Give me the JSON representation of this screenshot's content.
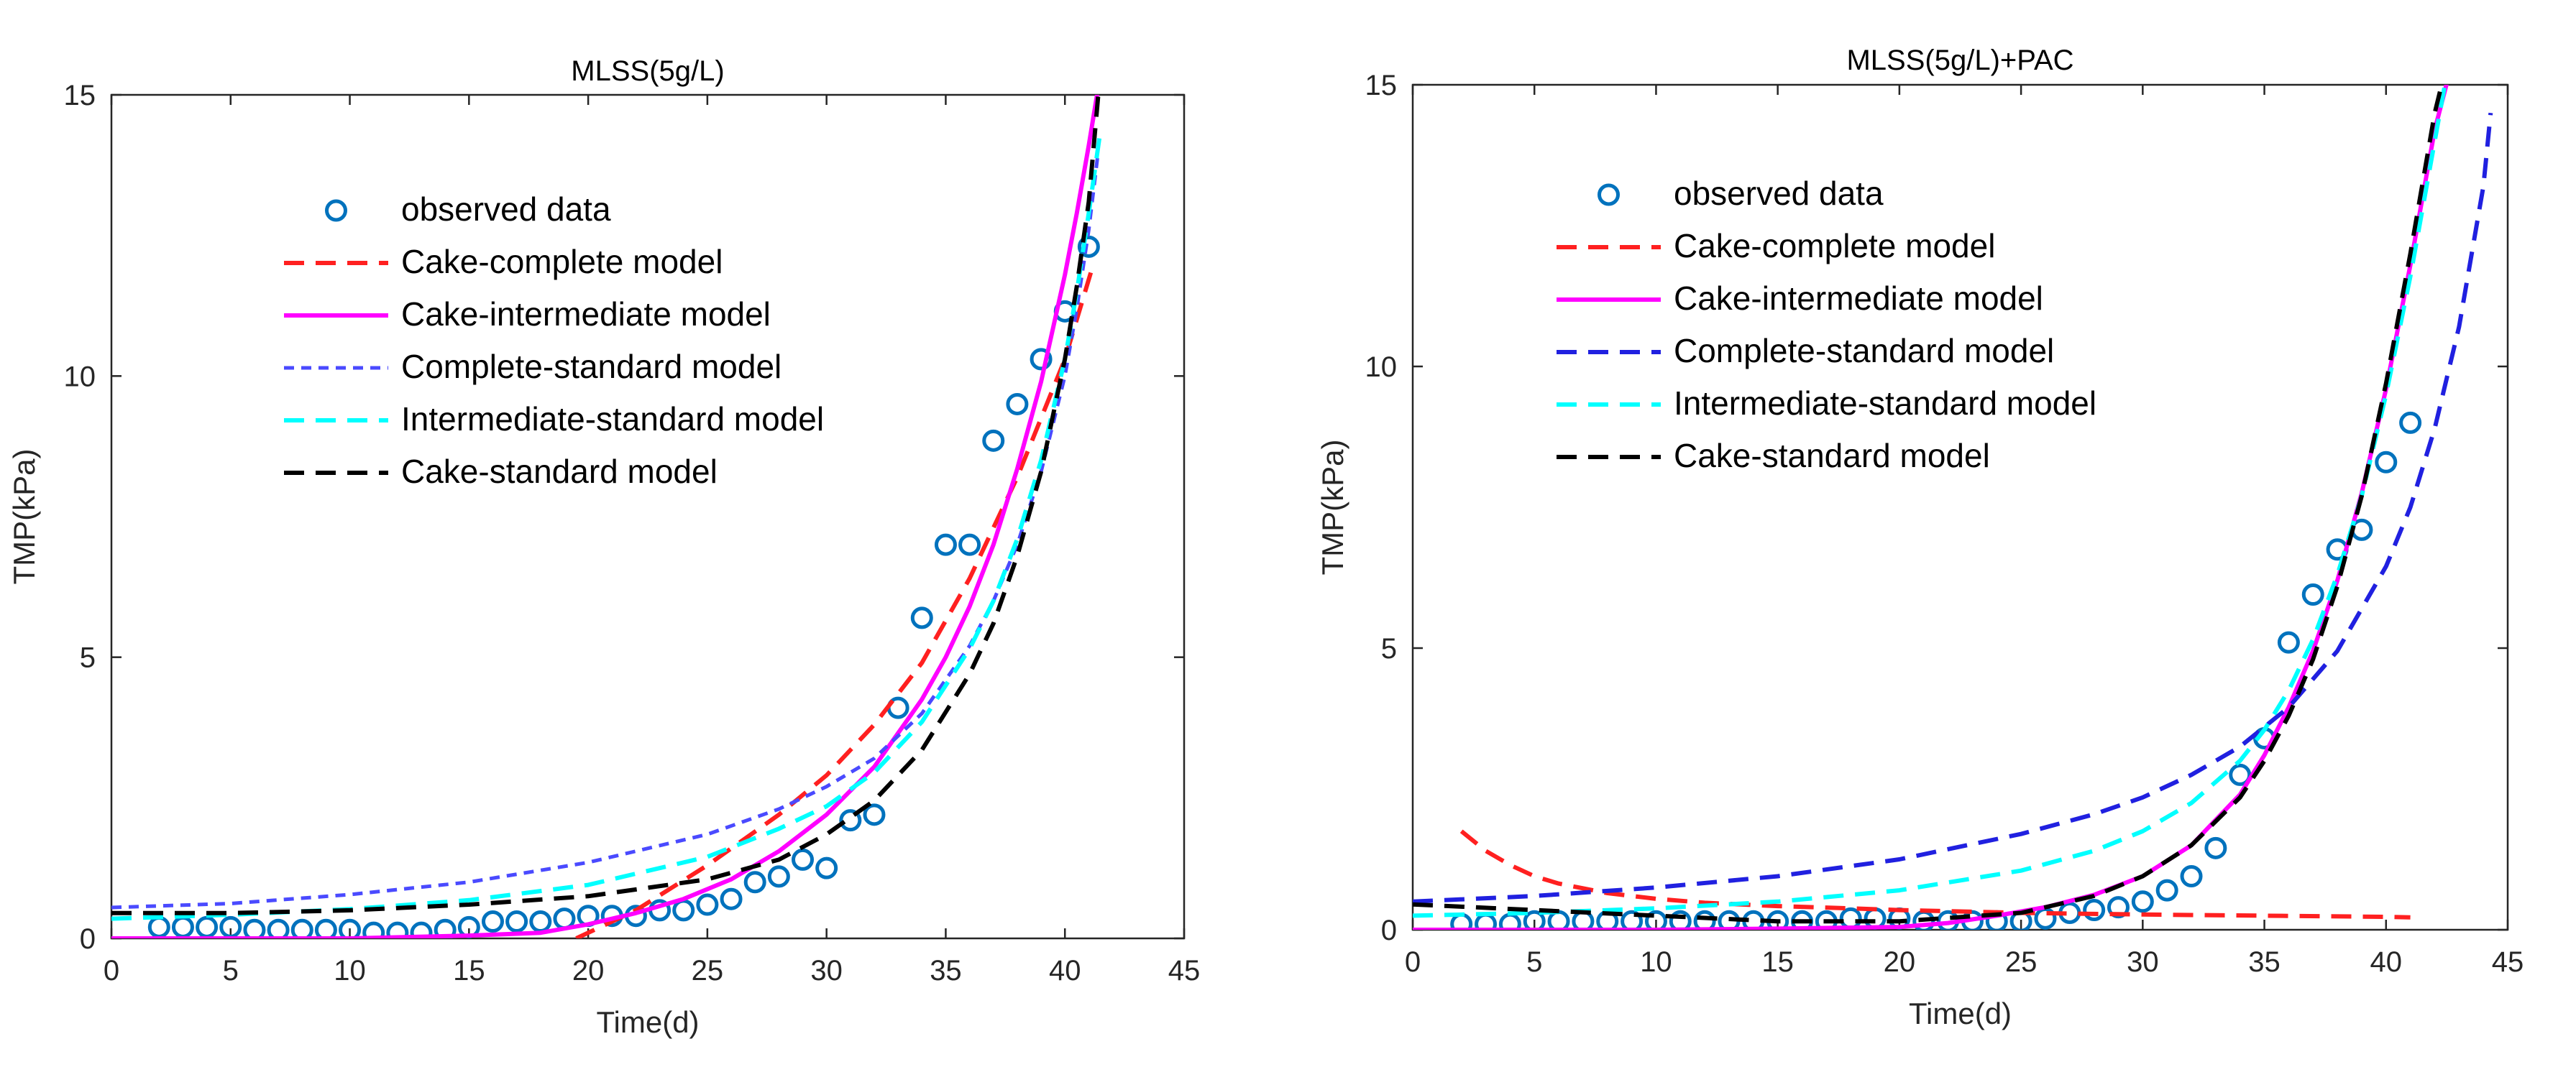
{
  "chart_data": [
    {
      "type": "line",
      "title": "MLSS(5g/L)",
      "xlabel": "Time(d)",
      "ylabel": "TMP(kPa)",
      "xlim": [
        0,
        45
      ],
      "ylim": [
        0,
        15
      ],
      "xticks": [
        0,
        5,
        10,
        15,
        20,
        25,
        30,
        35,
        40,
        45
      ],
      "yticks": [
        0,
        5,
        10,
        15
      ],
      "grid": false,
      "legend_position": "upper-left",
      "observed": {
        "name": "observed data",
        "color": "#0072BD",
        "x": [
          2,
          3,
          4,
          5,
          6,
          7,
          8,
          9,
          10,
          11,
          12,
          13,
          14,
          15,
          16,
          17,
          18,
          19,
          20,
          21,
          22,
          23,
          24,
          25,
          26,
          27,
          28,
          29,
          30,
          31,
          32,
          33,
          34,
          35,
          36,
          37,
          38,
          39,
          40,
          41
        ],
        "y": [
          0.2,
          0.2,
          0.2,
          0.2,
          0.15,
          0.15,
          0.15,
          0.15,
          0.15,
          0.1,
          0.1,
          0.1,
          0.15,
          0.2,
          0.3,
          0.3,
          0.3,
          0.35,
          0.4,
          0.4,
          0.4,
          0.5,
          0.5,
          0.6,
          0.7,
          1.0,
          1.1,
          1.4,
          1.25,
          2.1,
          2.2,
          4.1,
          5.7,
          7.0,
          7.0,
          8.85,
          9.5,
          10.3,
          11.15,
          12.3
        ]
      },
      "series": [
        {
          "name": "Cake-complete model",
          "color": "#FF2020",
          "style": "dash",
          "x": [
            19.5,
            22,
            25,
            28,
            30,
            32,
            34,
            36,
            38,
            40,
            41.2
          ],
          "y": [
            0,
            0.5,
            1.3,
            2.2,
            2.9,
            3.8,
            4.9,
            6.4,
            8.2,
            10.3,
            12.0
          ]
        },
        {
          "name": "Cake-intermediate model",
          "color": "#FF00FF",
          "style": "solid",
          "x": [
            0,
            10,
            15,
            18,
            20,
            22,
            24,
            26,
            28,
            30,
            32,
            34,
            35,
            36,
            37,
            38,
            39,
            40,
            40.5,
            41,
            41.5
          ],
          "y": [
            0,
            0,
            0.05,
            0.1,
            0.25,
            0.45,
            0.7,
            1.05,
            1.55,
            2.2,
            3.05,
            4.25,
            5.0,
            5.9,
            7.0,
            8.35,
            9.9,
            11.8,
            12.9,
            14.1,
            15.4
          ]
        },
        {
          "name": "Complete-standard model",
          "color": "#4A4AFF",
          "style": "dot",
          "x": [
            0,
            5,
            10,
            15,
            20,
            25,
            28,
            30,
            32,
            34,
            36,
            37,
            38,
            39,
            40,
            40.5,
            41,
            41.4
          ],
          "y": [
            0.55,
            0.62,
            0.78,
            1.0,
            1.35,
            1.85,
            2.3,
            2.7,
            3.2,
            4.0,
            5.2,
            6.0,
            7.0,
            8.3,
            10.0,
            11.2,
            12.6,
            14.0
          ]
        },
        {
          "name": "Intermediate-standard model",
          "color": "#00FFFF",
          "style": "dash",
          "x": [
            0,
            5,
            10,
            15,
            20,
            25,
            28,
            30,
            32,
            34,
            36,
            37,
            38,
            39,
            40,
            40.5,
            41,
            41.5
          ],
          "y": [
            0.35,
            0.42,
            0.52,
            0.68,
            0.95,
            1.45,
            1.95,
            2.35,
            2.95,
            3.85,
            5.15,
            6.0,
            7.1,
            8.5,
            10.3,
            11.5,
            12.9,
            14.4
          ]
        },
        {
          "name": "Cake-standard model",
          "color": "#000000",
          "style": "dash",
          "x": [
            0,
            5,
            10,
            15,
            20,
            25,
            28,
            30,
            32,
            34,
            36,
            37,
            38,
            39,
            40,
            40.5,
            41,
            41.4
          ],
          "y": [
            0.45,
            0.45,
            0.5,
            0.6,
            0.75,
            1.05,
            1.4,
            1.85,
            2.45,
            3.35,
            4.7,
            5.6,
            6.8,
            8.3,
            10.3,
            11.6,
            13.1,
            15.0
          ]
        }
      ]
    },
    {
      "type": "line",
      "title": "MLSS(5g/L)+PAC",
      "xlabel": "Time(d)",
      "ylabel": "TMP(kPa)",
      "xlim": [
        0,
        45
      ],
      "ylim": [
        0,
        15
      ],
      "xticks": [
        0,
        5,
        10,
        15,
        20,
        25,
        30,
        35,
        40,
        45
      ],
      "yticks": [
        0,
        5,
        10,
        15
      ],
      "grid": false,
      "legend_position": "upper-left",
      "observed": {
        "name": "observed data",
        "color": "#0072BD",
        "x": [
          2,
          3,
          4,
          5,
          6,
          7,
          8,
          9,
          10,
          11,
          12,
          13,
          14,
          15,
          16,
          17,
          18,
          19,
          20,
          21,
          22,
          23,
          24,
          25,
          26,
          27,
          28,
          29,
          30,
          31,
          32,
          33,
          34,
          35,
          36,
          37,
          38,
          39,
          40,
          41
        ],
        "y": [
          0.1,
          0.1,
          0.1,
          0.15,
          0.15,
          0.15,
          0.15,
          0.15,
          0.15,
          0.15,
          0.15,
          0.15,
          0.15,
          0.15,
          0.15,
          0.15,
          0.2,
          0.2,
          0.2,
          0.15,
          0.15,
          0.15,
          0.15,
          0.15,
          0.2,
          0.3,
          0.35,
          0.4,
          0.5,
          0.7,
          0.95,
          1.45,
          2.75,
          3.4,
          5.1,
          5.95,
          6.75,
          7.1,
          8.3,
          9.0
        ]
      },
      "series": [
        {
          "name": "Cake-complete model",
          "color": "#FF2020",
          "style": "dash",
          "x": [
            2,
            3,
            4,
            5,
            6,
            8,
            10,
            12,
            15,
            18,
            20,
            25,
            30,
            35,
            40,
            41
          ],
          "y": [
            1.75,
            1.4,
            1.15,
            0.95,
            0.82,
            0.65,
            0.55,
            0.48,
            0.42,
            0.38,
            0.35,
            0.3,
            0.27,
            0.25,
            0.23,
            0.22
          ]
        },
        {
          "name": "Cake-intermediate model",
          "color": "#FF00FF",
          "style": "solid",
          "x": [
            0,
            10,
            15,
            20,
            22,
            24,
            26,
            28,
            30,
            32,
            34,
            35,
            36,
            37,
            38,
            39,
            40,
            41,
            42,
            42.6
          ],
          "y": [
            0,
            0,
            0.02,
            0.05,
            0.12,
            0.25,
            0.4,
            0.62,
            0.95,
            1.5,
            2.4,
            3.1,
            3.95,
            4.95,
            6.2,
            7.75,
            9.6,
            11.8,
            14.2,
            15.2
          ]
        },
        {
          "name": "Complete-standard model",
          "color": "#2020E0",
          "style": "dash",
          "x": [
            0,
            5,
            10,
            15,
            20,
            25,
            28,
            30,
            32,
            34,
            36,
            38,
            40,
            41,
            42,
            43,
            44,
            44.3
          ],
          "y": [
            0.5,
            0.6,
            0.75,
            0.95,
            1.25,
            1.7,
            2.05,
            2.35,
            2.75,
            3.25,
            3.95,
            4.95,
            6.45,
            7.5,
            8.9,
            10.7,
            13.2,
            14.5
          ]
        },
        {
          "name": "Intermediate-standard model",
          "color": "#00FFFF",
          "style": "dash",
          "x": [
            0,
            5,
            10,
            15,
            20,
            25,
            28,
            30,
            32,
            34,
            35,
            36,
            37,
            38,
            39,
            40,
            41,
            42,
            42.5
          ],
          "y": [
            0.25,
            0.3,
            0.38,
            0.5,
            0.7,
            1.05,
            1.4,
            1.75,
            2.25,
            3.0,
            3.55,
            4.25,
            5.15,
            6.3,
            7.7,
            9.5,
            11.6,
            14.0,
            15.2
          ]
        },
        {
          "name": "Cake-standard model",
          "color": "#000000",
          "style": "dash",
          "x": [
            0,
            5,
            10,
            15,
            20,
            25,
            28,
            30,
            32,
            34,
            35,
            36,
            37,
            38,
            39,
            40,
            41,
            42,
            42.4
          ],
          "y": [
            0.45,
            0.35,
            0.25,
            0.15,
            0.15,
            0.3,
            0.6,
            0.95,
            1.5,
            2.35,
            3.0,
            3.8,
            4.8,
            6.1,
            7.7,
            9.7,
            12.0,
            14.5,
            15.2
          ]
        }
      ]
    }
  ]
}
